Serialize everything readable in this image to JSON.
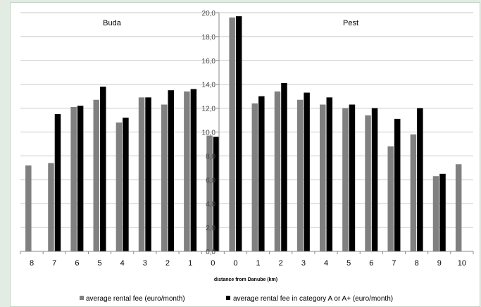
{
  "chart_data": {
    "type": "bar",
    "categories": [
      "8",
      "7",
      "6",
      "5",
      "4",
      "3",
      "2",
      "1",
      "0",
      "0",
      "1",
      "2",
      "3",
      "4",
      "5",
      "6",
      "7",
      "8",
      "9",
      "10"
    ],
    "series": [
      {
        "name": "average rental fee (euro/month)",
        "color": "#808080",
        "values": [
          7.2,
          7.4,
          12.1,
          12.7,
          10.8,
          12.9,
          12.3,
          13.4,
          9.7,
          19.6,
          12.4,
          13.4,
          12.7,
          12.3,
          12.0,
          11.4,
          8.8,
          9.8,
          6.3,
          7.3
        ]
      },
      {
        "name": "average rental fee in category A or A+ (euro/month)",
        "color": "#000000",
        "values": [
          null,
          11.5,
          12.2,
          13.8,
          11.2,
          12.9,
          13.5,
          13.6,
          9.6,
          19.7,
          13.0,
          14.1,
          13.3,
          12.9,
          12.3,
          12.0,
          11.1,
          12.0,
          6.5,
          null
        ]
      }
    ],
    "xlabel": "distance from Danube (km)",
    "ylabel": "",
    "ylim": [
      0,
      20
    ],
    "yticks": [
      "0,0",
      "2,0",
      "4,0",
      "6,0",
      "8,0",
      "10,0",
      "12,0",
      "14,0",
      "16,0",
      "18,0",
      "20,0"
    ],
    "grid": true,
    "legend": "bottom",
    "annotations": [
      "Buda",
      "Pest"
    ]
  }
}
